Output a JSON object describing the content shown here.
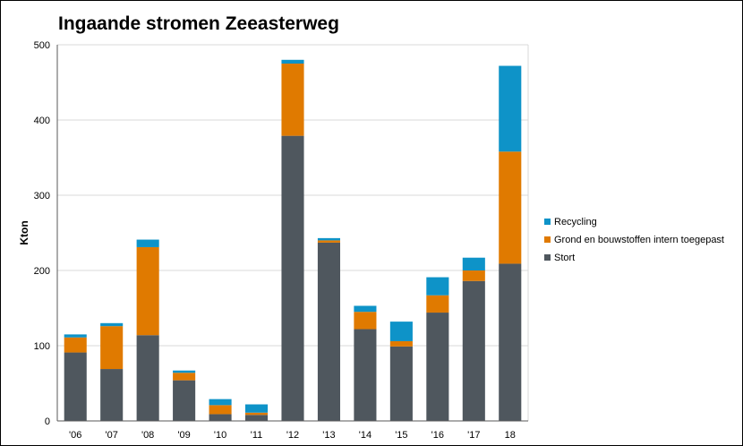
{
  "chart_data": {
    "type": "bar",
    "stacked": true,
    "title": "Ingaande stromen Zeeasterweg",
    "xlabel": "",
    "ylabel": "Kton",
    "categories": [
      "'06",
      "'07",
      "'08",
      "'09",
      "'10",
      "'11",
      "'12",
      "'13",
      "'14",
      "'15",
      "'16",
      "'17",
      "18"
    ],
    "ylim": [
      0,
      500
    ],
    "yticks": [
      0,
      100,
      200,
      300,
      400,
      500
    ],
    "grid": true,
    "legend_position": "right",
    "series": [
      {
        "name": "Stort",
        "color": "#4f575e",
        "values": [
          91,
          69,
          114,
          54,
          9,
          8,
          379,
          237,
          122,
          99,
          144,
          186,
          209
        ]
      },
      {
        "name": "Grond en bouwstoffen intern toegepast",
        "color": "#e07a00",
        "values": [
          20,
          57,
          117,
          10,
          12,
          3,
          96,
          3,
          23,
          7,
          23,
          14,
          149
        ]
      },
      {
        "name": "Recycling",
        "color": "#0e93c8",
        "values": [
          4,
          4,
          10,
          3,
          8,
          11,
          5,
          3,
          8,
          26,
          24,
          17,
          114
        ]
      }
    ]
  }
}
